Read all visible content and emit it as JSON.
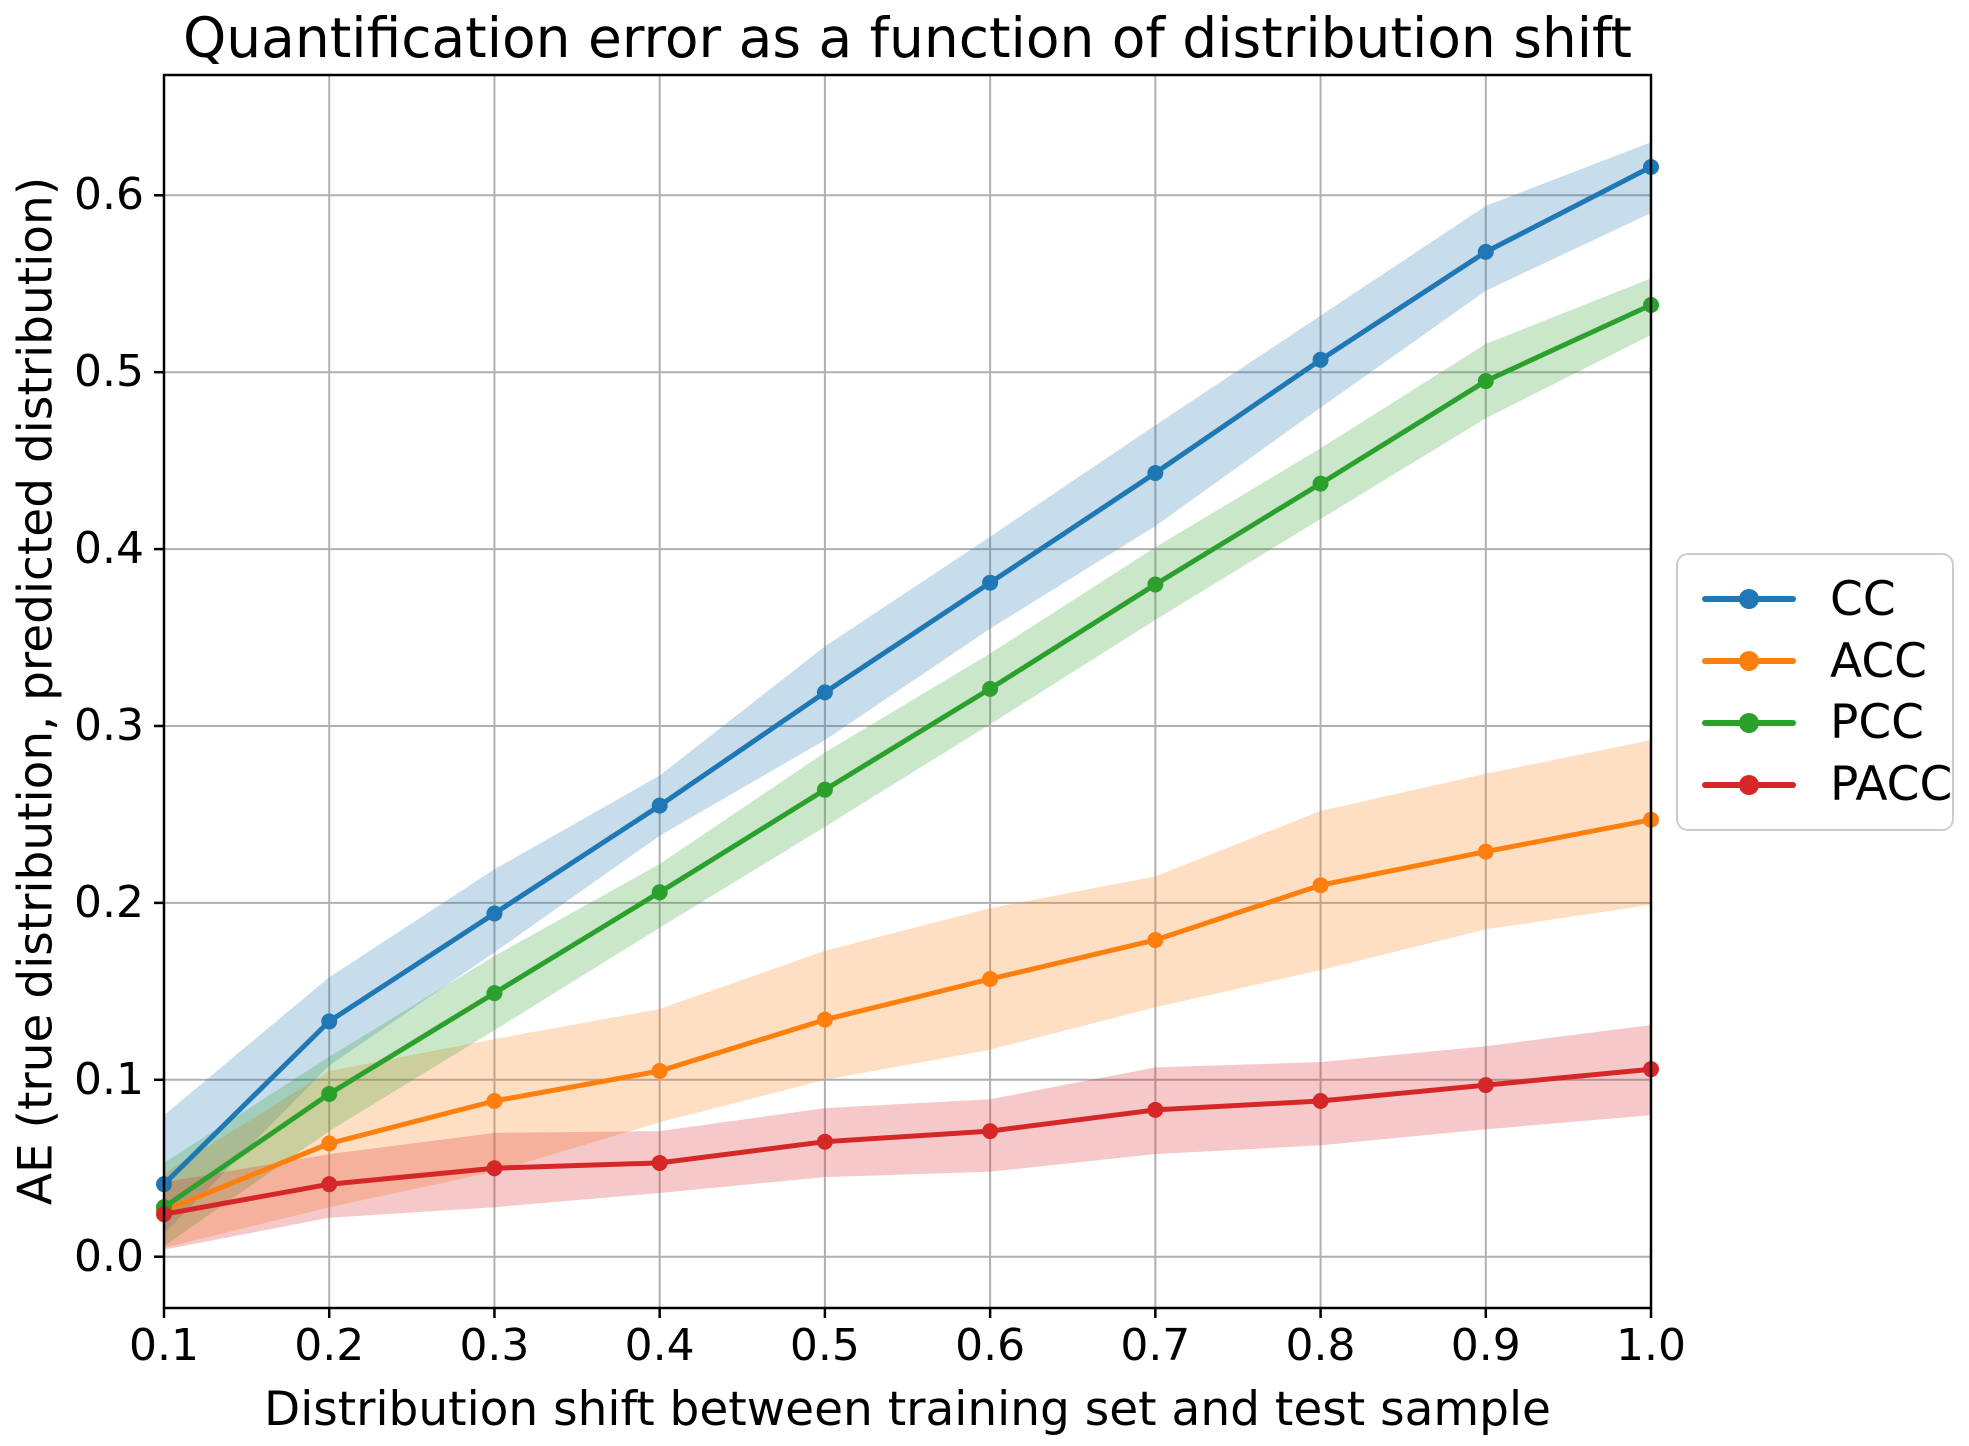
{
  "chart_data": {
    "type": "line",
    "title": "Quantification error as a function of distribution shift",
    "xlabel": "Distribution shift between training set and test sample",
    "ylabel": "AE (true distribution, predicted distribution)",
    "x": [
      0.1,
      0.2,
      0.3,
      0.4,
      0.5,
      0.6,
      0.7,
      0.8,
      0.9,
      1.0
    ],
    "x_tick_labels": [
      "0.1",
      "0.2",
      "0.3",
      "0.4",
      "0.5",
      "0.6",
      "0.7",
      "0.8",
      "0.9",
      "1.0"
    ],
    "y_ticks": [
      0.0,
      0.1,
      0.2,
      0.3,
      0.4,
      0.5,
      0.6
    ],
    "y_tick_labels": [
      "0.0",
      "0.1",
      "0.2",
      "0.3",
      "0.4",
      "0.5",
      "0.6"
    ],
    "xlim": [
      0.1,
      1.0
    ],
    "ylim": [
      -0.029,
      0.668
    ],
    "grid": true,
    "legend_position": "right-outside",
    "grid_color": "#b0b0b0",
    "axis_color": "#000000",
    "background": "#ffffff",
    "band_alpha": 0.25,
    "series": [
      {
        "name": "CC",
        "color": "#1f77b4",
        "values": [
          0.041,
          0.133,
          0.194,
          0.255,
          0.319,
          0.381,
          0.443,
          0.507,
          0.568,
          0.616
        ],
        "band_lower": [
          0.013,
          0.108,
          0.172,
          0.238,
          0.292,
          0.355,
          0.413,
          0.48,
          0.546,
          0.59
        ],
        "band_upper": [
          0.08,
          0.158,
          0.219,
          0.272,
          0.345,
          0.407,
          0.47,
          0.532,
          0.594,
          0.63
        ]
      },
      {
        "name": "ACC",
        "color": "#ff7f0e",
        "values": [
          0.026,
          0.064,
          0.088,
          0.105,
          0.134,
          0.157,
          0.179,
          0.21,
          0.229,
          0.247
        ],
        "band_lower": [
          0.005,
          0.028,
          0.048,
          0.076,
          0.1,
          0.117,
          0.141,
          0.162,
          0.185,
          0.199
        ],
        "band_upper": [
          0.047,
          0.105,
          0.123,
          0.14,
          0.173,
          0.197,
          0.215,
          0.252,
          0.273,
          0.292
        ]
      },
      {
        "name": "PCC",
        "color": "#2ca02c",
        "values": [
          0.028,
          0.092,
          0.149,
          0.206,
          0.264,
          0.321,
          0.38,
          0.437,
          0.495,
          0.538
        ],
        "band_lower": [
          0.006,
          0.071,
          0.128,
          0.186,
          0.243,
          0.301,
          0.36,
          0.417,
          0.474,
          0.521
        ],
        "band_upper": [
          0.053,
          0.113,
          0.17,
          0.222,
          0.285,
          0.341,
          0.401,
          0.457,
          0.516,
          0.553
        ]
      },
      {
        "name": "PACC",
        "color": "#d62728",
        "values": [
          0.024,
          0.041,
          0.05,
          0.053,
          0.065,
          0.071,
          0.083,
          0.088,
          0.097,
          0.106
        ],
        "band_lower": [
          0.004,
          0.022,
          0.028,
          0.036,
          0.045,
          0.048,
          0.058,
          0.063,
          0.072,
          0.08
        ],
        "band_upper": [
          0.042,
          0.058,
          0.07,
          0.071,
          0.084,
          0.089,
          0.107,
          0.11,
          0.119,
          0.131
        ]
      }
    ]
  }
}
